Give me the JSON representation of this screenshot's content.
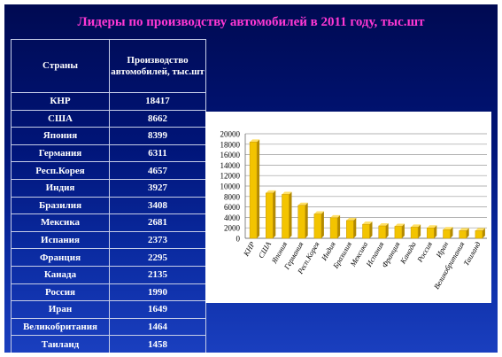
{
  "title": "Лидеры по производству автомобилей в 2011 году, тыс.шт",
  "table": {
    "headers": [
      "Страны",
      "Производство автомобилей, тыс.шт"
    ],
    "rows": [
      {
        "country": "КНР",
        "value": "18417"
      },
      {
        "country": "США",
        "value": "8662"
      },
      {
        "country": "Япония",
        "value": "8399"
      },
      {
        "country": "Германия",
        "value": "6311"
      },
      {
        "country": "Респ.Корея",
        "value": "4657"
      },
      {
        "country": "Индия",
        "value": "3927"
      },
      {
        "country": "Бразилия",
        "value": "3408"
      },
      {
        "country": "Мексика",
        "value": "2681"
      },
      {
        "country": "Испания",
        "value": "2373"
      },
      {
        "country": "Франция",
        "value": "2295"
      },
      {
        "country": "Канада",
        "value": "2135"
      },
      {
        "country": "Россия",
        "value": "1990"
      },
      {
        "country": "Иран",
        "value": "1649"
      },
      {
        "country": "Великобритания",
        "value": "1464"
      },
      {
        "country": "Таиланд",
        "value": "1458"
      }
    ]
  },
  "colors": {
    "title": "#ff38d4",
    "bar": "#f3c400",
    "bar_dark": "#b38a00"
  },
  "chart_data": {
    "type": "bar",
    "categories": [
      "КНР",
      "США",
      "Япония",
      "Германия",
      "Респ.Корея",
      "Индия",
      "Бразилия",
      "Мексика",
      "Испания",
      "Франция",
      "Канада",
      "Россия",
      "Иран",
      "Великобритания",
      "Таиланд"
    ],
    "values": [
      18417,
      8662,
      8399,
      6311,
      4657,
      3927,
      3408,
      2681,
      2373,
      2295,
      2135,
      1990,
      1649,
      1464,
      1458
    ],
    "yticks": [
      "0",
      "2000",
      "4000",
      "6000",
      "8000",
      "10000",
      "12000",
      "14000",
      "16000",
      "18000",
      "20000"
    ],
    "ylim": [
      0,
      20000
    ],
    "grid": true,
    "legend": "none",
    "title": "",
    "xlabel": "",
    "ylabel": ""
  }
}
